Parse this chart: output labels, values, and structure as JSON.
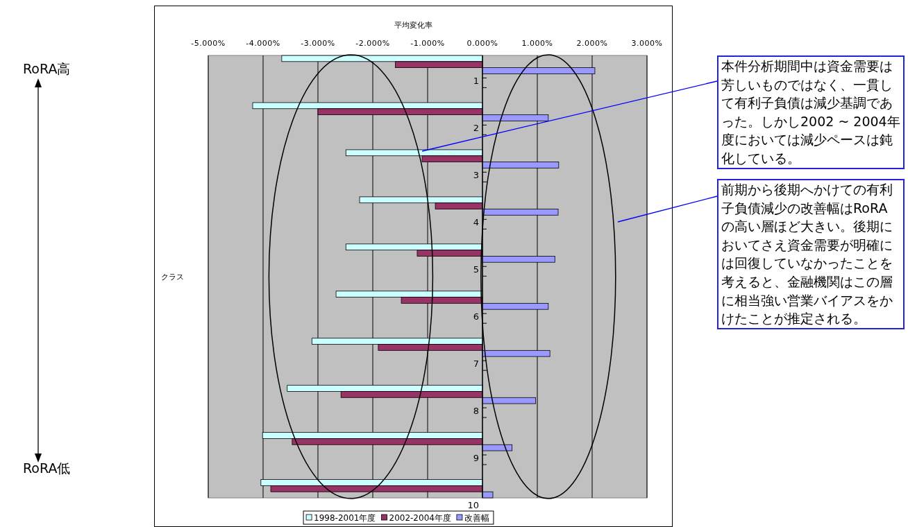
{
  "chart_data": {
    "type": "bar",
    "orientation": "horizontal",
    "xlabel": "平均変化率",
    "ylabel": "クラス",
    "categories": [
      "1",
      "2",
      "3",
      "4",
      "5",
      "6",
      "7",
      "8",
      "9",
      "10"
    ],
    "series": [
      {
        "name": "1998-2001年度",
        "color": "#ccffff",
        "values": [
          -3.66,
          -4.19,
          -2.49,
          -2.24,
          -2.49,
          -2.67,
          -3.11,
          -3.56,
          -4.01,
          -4.04
        ]
      },
      {
        "name": "2002-2004年度",
        "color": "#993366",
        "values": [
          -1.59,
          -3.0,
          -1.1,
          -0.86,
          -1.19,
          -1.48,
          -1.9,
          -2.58,
          -3.47,
          -3.86
        ]
      },
      {
        "name": "改善幅",
        "color": "#9999ff",
        "values": [
          2.05,
          1.2,
          1.39,
          1.38,
          1.32,
          1.2,
          1.23,
          0.97,
          0.54,
          0.19
        ]
      }
    ],
    "xlim": [
      -5,
      3
    ],
    "xticks": [
      {
        "value": -5,
        "label": "-5.000%"
      },
      {
        "value": -4,
        "label": "-4.000%"
      },
      {
        "value": -3,
        "label": "-3.000%"
      },
      {
        "value": -2,
        "label": "-2.000%"
      },
      {
        "value": -1,
        "label": "-1.000%"
      },
      {
        "value": 0,
        "label": "0.000%"
      },
      {
        "value": 1,
        "label": "1.000%"
      },
      {
        "value": 2,
        "label": "2.000%"
      },
      {
        "value": 3,
        "label": "3.000%"
      }
    ],
    "grid": "x",
    "legend": "bottom",
    "annotations": [
      "RoRA高",
      "RoRA低",
      "本件分析期間中は資金需要は芳しいものではなく、一貫して有利子負債は減少基調であった。しかし2002 ~ 2004年度においては減少ペースは鈍化している。",
      "前期から後期へかけての有利子負債減少の改善幅はRoRAの高い層ほど大きい。後期においてさえ資金需要が明確には回復していなかったことを考えると、金融機関はこの層に相当強い営業バイアスをかけたことが推定される。"
    ]
  }
}
